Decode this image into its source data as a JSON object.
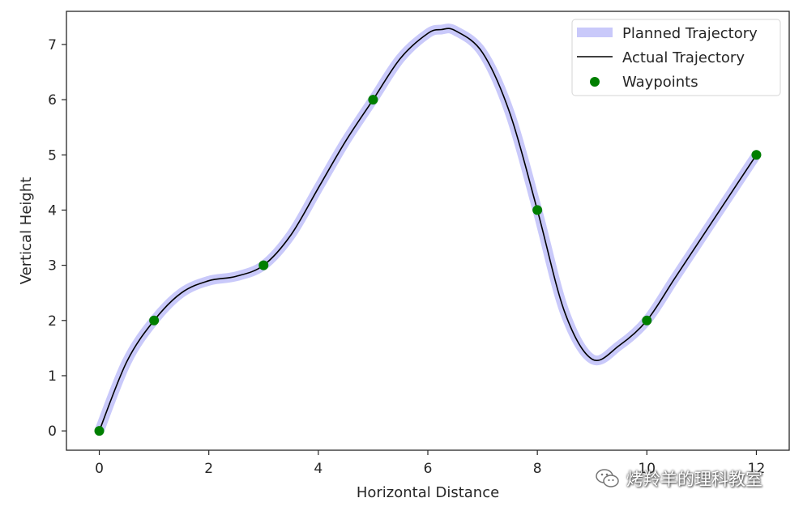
{
  "chart_data": {
    "type": "line",
    "title": "",
    "xlabel": "Horizontal Distance",
    "ylabel": "Vertical Height",
    "xlim": [
      -0.6,
      12.6
    ],
    "ylim": [
      -0.35,
      7.6
    ],
    "xticks": [
      0,
      2,
      4,
      6,
      8,
      10,
      12
    ],
    "yticks": [
      0,
      1,
      2,
      3,
      4,
      5,
      6,
      7
    ],
    "grid": false,
    "legend_position": "top-right",
    "series": [
      {
        "name": "Planned Trajectory",
        "kind": "line",
        "color": "#c9c9fa",
        "x": [
          0,
          0.5,
          1,
          1.5,
          2,
          2.5,
          3,
          3.5,
          4,
          4.5,
          5,
          5.5,
          6,
          6.25,
          6.5,
          7,
          7.5,
          8,
          8.5,
          9,
          9.5,
          10,
          10.5,
          11,
          11.5,
          12
        ],
        "y": [
          0,
          1.25,
          2,
          2.5,
          2.72,
          2.8,
          3,
          3.55,
          4.4,
          5.25,
          6,
          6.75,
          7.2,
          7.27,
          7.25,
          6.85,
          5.75,
          4,
          2.15,
          1.3,
          1.55,
          2,
          2.75,
          3.5,
          4.25,
          5
        ]
      },
      {
        "name": "Actual Trajectory",
        "kind": "line",
        "color": "#000000",
        "x": [
          0,
          0.5,
          1,
          1.5,
          2,
          2.5,
          3,
          3.5,
          4,
          4.5,
          5,
          5.5,
          6,
          6.25,
          6.5,
          7,
          7.5,
          8,
          8.5,
          9,
          9.5,
          10,
          10.5,
          11,
          11.5,
          12
        ],
        "y": [
          0,
          1.25,
          2,
          2.5,
          2.72,
          2.8,
          3,
          3.55,
          4.4,
          5.25,
          6,
          6.75,
          7.2,
          7.27,
          7.25,
          6.85,
          5.75,
          4,
          2.15,
          1.3,
          1.55,
          2,
          2.75,
          3.5,
          4.25,
          5
        ]
      },
      {
        "name": "Waypoints",
        "kind": "scatter",
        "color": "#007f00",
        "x": [
          0,
          1,
          3,
          5,
          8,
          10,
          12
        ],
        "y": [
          0,
          2,
          3,
          6,
          4,
          2,
          5
        ]
      }
    ]
  },
  "watermark": {
    "text": "烤羚羊的理科教室",
    "icon": "wechat-icon"
  }
}
